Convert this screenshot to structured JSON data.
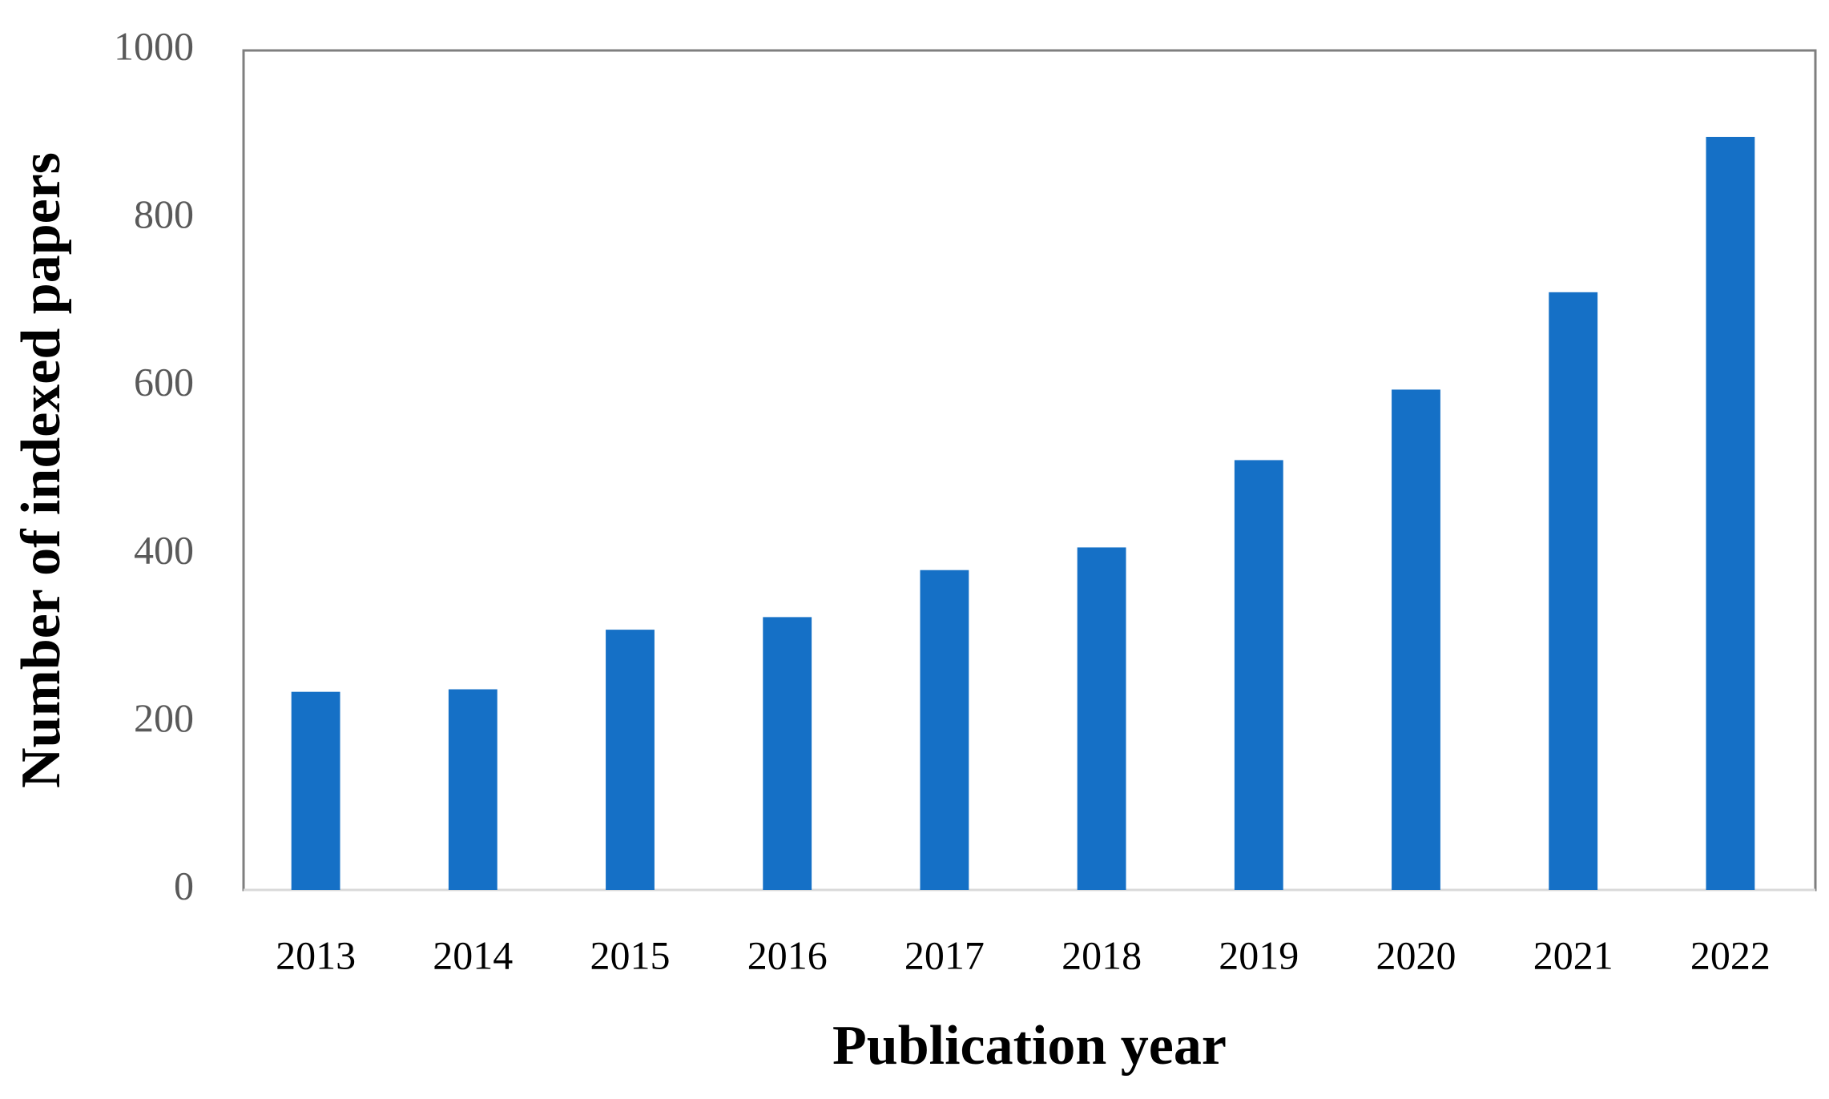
{
  "chart_data": {
    "type": "bar",
    "x_label": "Publication year",
    "y_label": "Number of indexed papers",
    "categories": [
      "2013",
      "2014",
      "2015",
      "2016",
      "2017",
      "2018",
      "2019",
      "2020",
      "2021",
      "2022"
    ],
    "values": [
      236,
      239,
      310,
      325,
      381,
      408,
      512,
      596,
      712,
      897
    ],
    "color": "#1570c6",
    "ylim": [
      0,
      1000
    ],
    "yticks": [
      0,
      200,
      400,
      600,
      800,
      1000
    ],
    "grid": false
  }
}
